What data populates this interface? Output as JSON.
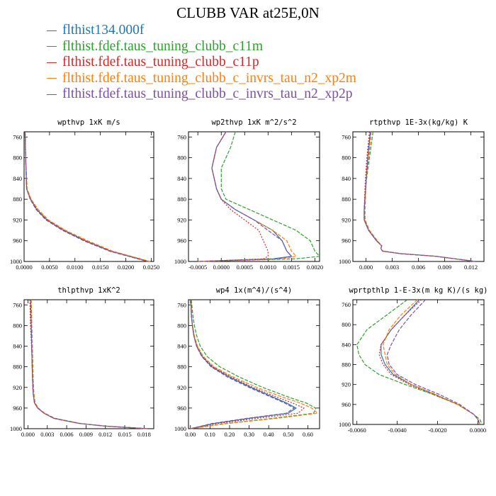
{
  "title": "CLUBB VAR at25E,0N",
  "legend": [
    {
      "label": "flthist134.000f",
      "color": "#1f77b4"
    },
    {
      "label": "flthist.fdef.taus_tuning_clubb_c11m",
      "color": "#2ca02c"
    },
    {
      "label": "flthist.fdef.taus_tuning_clubb_c11p",
      "color": "#d62728"
    },
    {
      "label": "flthist.fdef.taus_tuning_clubb_c_invrs_tau_n2_xp2m",
      "color": "#ff7f0e"
    },
    {
      "label": "flthist.fdef.taus_tuning_clubb_c_invrs_tau_n2_xp2p",
      "color": "#7b4fa6"
    }
  ],
  "chart_data": [
    {
      "type": "line",
      "title": "wpthvp  1xK m/s",
      "x_ticks": [
        "0.0000",
        "0.0050",
        "0.0100",
        "0.0150",
        "0.0200",
        "0.0250"
      ],
      "y_ticks": [
        "760",
        "800",
        "840",
        "880",
        "920",
        "960",
        "1000"
      ],
      "xlim": [
        0,
        0.0255
      ],
      "ylim": [
        750,
        1000
      ],
      "y": [
        750,
        800,
        860,
        880,
        900,
        920,
        940,
        960,
        980,
        1000
      ],
      "series": [
        {
          "name": "flthist134.000f",
          "values": [
            0.0002,
            0.0003,
            0.0005,
            0.0013,
            0.0025,
            0.0045,
            0.0078,
            0.012,
            0.017,
            0.0245
          ]
        },
        {
          "name": "flthist.fdef.taus_tuning_clubb_c11m",
          "values": [
            0.0002,
            0.0003,
            0.0005,
            0.0012,
            0.0024,
            0.0043,
            0.0076,
            0.0118,
            0.0168,
            0.0243
          ]
        },
        {
          "name": "flthist.fdef.taus_tuning_clubb_c11p",
          "values": [
            0.0002,
            0.0003,
            0.0005,
            0.0013,
            0.0026,
            0.0046,
            0.0079,
            0.0121,
            0.0171,
            0.0246
          ]
        },
        {
          "name": "flthist.fdef.taus_tuning_clubb_c_invrs_tau_n2_xp2m",
          "values": [
            0.0002,
            0.0003,
            0.0006,
            0.0014,
            0.0028,
            0.0048,
            0.0082,
            0.0125,
            0.0174,
            0.0248
          ]
        },
        {
          "name": "flthist.fdef.taus_tuning_clubb_c_invrs_tau_n2_xp2p",
          "values": [
            0.0002,
            0.0003,
            0.0005,
            0.0012,
            0.0024,
            0.0043,
            0.0076,
            0.0117,
            0.0168,
            0.0243
          ]
        }
      ]
    },
    {
      "type": "line",
      "title": "wp2thvp  1xK m^2/s^2",
      "x_ticks": [
        "-0.0005",
        "0.0000",
        "0.0005",
        "0.0010",
        "0.0015",
        "0.0020"
      ],
      "y_ticks": [
        "760",
        "800",
        "840",
        "880",
        "920",
        "960",
        "1000"
      ],
      "xlim": [
        -0.0007,
        0.0021
      ],
      "ylim": [
        750,
        1000
      ],
      "y": [
        750,
        780,
        820,
        860,
        880,
        900,
        920,
        940,
        960,
        980,
        990,
        995,
        1000
      ],
      "series": [
        {
          "name": "flthist134.000f",
          "values": [
            0.0001,
            -0.0001,
            -0.0002,
            -0.0001,
            0.0,
            0.0003,
            0.0007,
            0.0011,
            0.0013,
            0.0014,
            0.0015,
            0.0011,
            -0.0005
          ]
        },
        {
          "name": "flthist.fdef.taus_tuning_clubb_c11m",
          "values": [
            0.0003,
            0.0002,
            0.0,
            0.0,
            0.0001,
            0.0006,
            0.0011,
            0.0016,
            0.0019,
            0.002,
            0.0021,
            0.0016,
            -0.0005
          ]
        },
        {
          "name": "flthist.fdef.taus_tuning_clubb_c11p",
          "values": [
            0.0001,
            -0.0001,
            -0.0002,
            -0.0001,
            0.0,
            0.0002,
            0.0005,
            0.0008,
            0.0009,
            0.001,
            0.001,
            0.0009,
            -0.0005
          ]
        },
        {
          "name": "flthist.fdef.taus_tuning_clubb_c_invrs_tau_n2_xp2m",
          "values": [
            0.0001,
            -0.0001,
            -0.0002,
            -0.0001,
            0.0,
            0.0003,
            0.0007,
            0.0011,
            0.0014,
            0.0015,
            0.0016,
            0.0013,
            -0.0005
          ]
        },
        {
          "name": "flthist.fdef.taus_tuning_clubb_c_invrs_tau_n2_xp2p",
          "values": [
            0.0001,
            -0.0001,
            -0.0002,
            -0.0001,
            0.0,
            0.0003,
            0.0007,
            0.001,
            0.0013,
            0.0014,
            0.0015,
            0.0012,
            -0.0005
          ]
        }
      ]
    },
    {
      "type": "line",
      "title": "rtpthvp  1E-3x(kg/kg) K",
      "x_ticks": [
        "0.000",
        "0.003",
        "0.006",
        "0.009",
        "0.012"
      ],
      "y_ticks": [
        "760",
        "800",
        "840",
        "880",
        "920",
        "960",
        "1000"
      ],
      "xlim": [
        -0.0015,
        0.0135
      ],
      "ylim": [
        750,
        1000
      ],
      "y": [
        750,
        800,
        850,
        900,
        920,
        940,
        960,
        970,
        975,
        980,
        985,
        990,
        1000
      ],
      "series": [
        {
          "name": "flthist134.000f",
          "values": [
            0.0005,
            0.0002,
            0.0,
            -0.0002,
            -0.0002,
            0.0003,
            0.0012,
            0.0018,
            0.0017,
            0.0019,
            0.004,
            0.008,
            0.0125
          ]
        },
        {
          "name": "flthist.fdef.taus_tuning_clubb_c11m",
          "values": [
            0.0008,
            0.0004,
            0.0,
            -0.0002,
            -0.0001,
            0.0004,
            0.0013,
            0.0018,
            0.0017,
            0.0019,
            0.004,
            0.008,
            0.0125
          ]
        },
        {
          "name": "flthist.fdef.taus_tuning_clubb_c11p",
          "values": [
            0.0004,
            0.0001,
            -0.0001,
            -0.0002,
            -0.0002,
            0.0003,
            0.0012,
            0.0018,
            0.0017,
            0.0019,
            0.004,
            0.008,
            0.0125
          ]
        },
        {
          "name": "flthist.fdef.taus_tuning_clubb_c_invrs_tau_n2_xp2m",
          "values": [
            0.0006,
            0.0003,
            0.0,
            -0.0001,
            -0.0001,
            0.0004,
            0.0013,
            0.0018,
            0.0017,
            0.0019,
            0.004,
            0.008,
            0.0125
          ]
        },
        {
          "name": "flthist.fdef.taus_tuning_clubb_c_invrs_tau_n2_xp2p",
          "values": [
            0.0005,
            0.0002,
            0.0,
            -0.0002,
            -0.0002,
            0.0003,
            0.0012,
            0.0018,
            0.0017,
            0.0019,
            0.004,
            0.008,
            0.0125
          ]
        }
      ]
    },
    {
      "type": "line",
      "title": "thlpthvp  1xK^2",
      "x_ticks": [
        "0.000",
        "0.003",
        "0.006",
        "0.009",
        "0.012",
        "0.015",
        "0.018"
      ],
      "y_ticks": [
        "760",
        "800",
        "840",
        "880",
        "920",
        "960",
        "1000"
      ],
      "xlim": [
        -0.0006,
        0.0195
      ],
      "ylim": [
        750,
        1000
      ],
      "y": [
        750,
        800,
        850,
        900,
        930,
        950,
        960,
        970,
        980,
        990,
        995,
        1000
      ],
      "series": [
        {
          "name": "flthist134.000f",
          "values": [
            0.0004,
            0.0005,
            0.0006,
            0.0007,
            0.0008,
            0.001,
            0.0015,
            0.0025,
            0.004,
            0.008,
            0.012,
            0.0185
          ]
        },
        {
          "name": "flthist.fdef.taus_tuning_clubb_c11m",
          "values": [
            0.0005,
            0.0006,
            0.0007,
            0.0008,
            0.0009,
            0.0011,
            0.0016,
            0.0026,
            0.0042,
            0.0082,
            0.0122,
            0.0185
          ]
        },
        {
          "name": "flthist.fdef.taus_tuning_clubb_c11p",
          "values": [
            0.0003,
            0.0004,
            0.0006,
            0.0007,
            0.0008,
            0.001,
            0.0015,
            0.0025,
            0.004,
            0.008,
            0.012,
            0.0185
          ]
        },
        {
          "name": "flthist.fdef.taus_tuning_clubb_c_invrs_tau_n2_xp2m",
          "values": [
            0.0005,
            0.0006,
            0.0007,
            0.0008,
            0.0009,
            0.0011,
            0.0016,
            0.0026,
            0.0041,
            0.0081,
            0.0121,
            0.0185
          ]
        },
        {
          "name": "flthist.fdef.taus_tuning_clubb_c_invrs_tau_n2_xp2p",
          "values": [
            0.0004,
            0.0005,
            0.0006,
            0.0007,
            0.0008,
            0.001,
            0.0015,
            0.0025,
            0.004,
            0.008,
            0.012,
            0.0185
          ]
        }
      ]
    },
    {
      "type": "line",
      "title": "wp4  1x(m^4)/(s^4)",
      "x_ticks": [
        "0.00",
        "0.10",
        "0.20",
        "0.30",
        "0.40",
        "0.50",
        "0.60"
      ],
      "y_ticks": [
        "760",
        "800",
        "840",
        "880",
        "920",
        "960",
        "1000"
      ],
      "xlim": [
        -0.01,
        0.66
      ],
      "ylim": [
        750,
        1000
      ],
      "y": [
        750,
        780,
        800,
        820,
        840,
        860,
        880,
        900,
        920,
        940,
        950,
        960,
        970,
        980,
        990,
        1000
      ],
      "series": [
        {
          "name": "flthist134.000f",
          "values": [
            0.002,
            0.005,
            0.01,
            0.018,
            0.032,
            0.06,
            0.11,
            0.2,
            0.31,
            0.43,
            0.49,
            0.54,
            0.5,
            0.3,
            0.12,
            0.0
          ]
        },
        {
          "name": "flthist.fdef.taus_tuning_clubb_c11m",
          "values": [
            0.005,
            0.012,
            0.02,
            0.032,
            0.05,
            0.085,
            0.15,
            0.25,
            0.37,
            0.51,
            0.59,
            0.64,
            0.63,
            0.42,
            0.18,
            0.0
          ]
        },
        {
          "name": "flthist.fdef.taus_tuning_clubb_c11p",
          "values": [
            0.002,
            0.005,
            0.01,
            0.018,
            0.033,
            0.062,
            0.115,
            0.21,
            0.32,
            0.45,
            0.52,
            0.58,
            0.55,
            0.34,
            0.14,
            0.0
          ]
        },
        {
          "name": "flthist.fdef.taus_tuning_clubb_c_invrs_tau_n2_xp2m",
          "values": [
            0.003,
            0.006,
            0.011,
            0.02,
            0.036,
            0.066,
            0.12,
            0.22,
            0.34,
            0.48,
            0.56,
            0.62,
            0.65,
            0.44,
            0.19,
            0.0
          ]
        },
        {
          "name": "flthist.fdef.taus_tuning_clubb_c_invrs_tau_n2_xp2p",
          "values": [
            0.002,
            0.005,
            0.01,
            0.017,
            0.031,
            0.058,
            0.105,
            0.19,
            0.3,
            0.42,
            0.48,
            0.53,
            0.49,
            0.29,
            0.11,
            0.0
          ]
        }
      ]
    },
    {
      "type": "line",
      "title": "wprtpthlp  1-E-3x(m kg K)/(s kg)",
      "x_ticks": [
        "-0.0060",
        "-0.0040",
        "-0.0020",
        "0.0000"
      ],
      "y_ticks": [
        "760",
        "800",
        "840",
        "880",
        "920",
        "960",
        "1000"
      ],
      "xlim": [
        -0.0062,
        0.0003
      ],
      "ylim": [
        750,
        1000
      ],
      "y": [
        750,
        780,
        810,
        840,
        860,
        880,
        900,
        920,
        940,
        960,
        980,
        990,
        1000
      ],
      "series": [
        {
          "name": "flthist134.000f",
          "values": [
            -0.0029,
            -0.0036,
            -0.0043,
            -0.0048,
            -0.0048,
            -0.0046,
            -0.0042,
            -0.0033,
            -0.0021,
            -0.001,
            -0.0002,
            0.0,
            0.0001
          ]
        },
        {
          "name": "flthist.fdef.taus_tuning_clubb_c11m",
          "values": [
            -0.0035,
            -0.0045,
            -0.0055,
            -0.006,
            -0.0059,
            -0.0056,
            -0.0049,
            -0.0036,
            -0.0022,
            -0.001,
            -0.0002,
            0.0001,
            0.0002
          ]
        },
        {
          "name": "flthist.fdef.taus_tuning_clubb_c11p",
          "values": [
            -0.0028,
            -0.0036,
            -0.0043,
            -0.0048,
            -0.0049,
            -0.0047,
            -0.0043,
            -0.0034,
            -0.0022,
            -0.001,
            -0.0002,
            0.0,
            0.0001
          ]
        },
        {
          "name": "flthist.fdef.taus_tuning_clubb_c_invrs_tau_n2_xp2m",
          "values": [
            -0.003,
            -0.0038,
            -0.0044,
            -0.0047,
            -0.0046,
            -0.0045,
            -0.0041,
            -0.0033,
            -0.0021,
            -0.001,
            -0.0002,
            0.0,
            0.0001
          ]
        },
        {
          "name": "flthist.fdef.taus_tuning_clubb_c_invrs_tau_n2_xp2p",
          "values": [
            -0.0026,
            -0.0033,
            -0.0039,
            -0.0043,
            -0.0045,
            -0.0044,
            -0.004,
            -0.0031,
            -0.0019,
            -0.0009,
            -0.0002,
            0.0,
            0.0001
          ]
        }
      ]
    }
  ]
}
